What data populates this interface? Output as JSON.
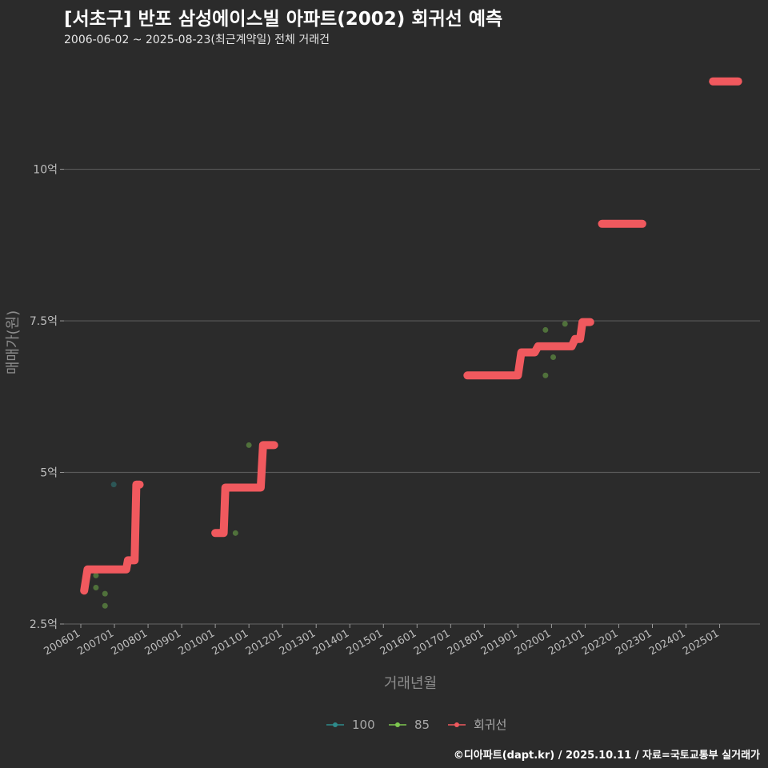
{
  "header": {
    "title": "[서초구] 반포 삼성에이스빌 아파트(2002) 회귀선 예측",
    "subtitle": "2006-06-02 ~ 2025-08-23(최근계약일) 전체 거래건"
  },
  "footer": {
    "credit": "©디아파트(dapt.kr) / 2025.10.11 / 자료=국토교통부 실거래가"
  },
  "colors": {
    "background": "#2b2b2b",
    "regression": "#f0595e",
    "series_100": "#2e8b8b",
    "series_85": "#7ec850",
    "grid": "#5a5a5a"
  },
  "chart_data": {
    "type": "scatter",
    "title": "[서초구] 반포 삼성에이스빌 아파트(2002) 회귀선 예측",
    "xlabel": "거래년월",
    "ylabel": "매매가(원)",
    "ylim": [
      2.5,
      12.0
    ],
    "xlim": [
      2005.5,
      2026.2
    ],
    "y_ticks": [
      {
        "value": 2.5,
        "label": "2.5억"
      },
      {
        "value": 5,
        "label": "5억"
      },
      {
        "value": 7.5,
        "label": "7.5억"
      },
      {
        "value": 10,
        "label": "10억"
      }
    ],
    "x_ticks": [
      {
        "value": 2006.0,
        "label": "200601"
      },
      {
        "value": 2007.0,
        "label": "200701"
      },
      {
        "value": 2008.0,
        "label": "200801"
      },
      {
        "value": 2009.0,
        "label": "200901"
      },
      {
        "value": 2010.0,
        "label": "201001"
      },
      {
        "value": 2011.0,
        "label": "201101"
      },
      {
        "value": 2012.0,
        "label": "201201"
      },
      {
        "value": 2013.0,
        "label": "201301"
      },
      {
        "value": 2014.0,
        "label": "201401"
      },
      {
        "value": 2015.0,
        "label": "201501"
      },
      {
        "value": 2016.0,
        "label": "201601"
      },
      {
        "value": 2017.0,
        "label": "201701"
      },
      {
        "value": 2018.0,
        "label": "201801"
      },
      {
        "value": 2019.0,
        "label": "201901"
      },
      {
        "value": 2020.0,
        "label": "202001"
      },
      {
        "value": 2021.0,
        "label": "202101"
      },
      {
        "value": 2022.0,
        "label": "202201"
      },
      {
        "value": 2023.0,
        "label": "202301"
      },
      {
        "value": 2024.0,
        "label": "202401"
      },
      {
        "value": 2025.0,
        "label": "202501"
      }
    ],
    "series": [
      {
        "name": "100",
        "color": "#2e8b8b",
        "points": [
          {
            "x": 2006.98,
            "y": 4.8
          }
        ]
      },
      {
        "name": "85",
        "color": "#7ec850",
        "points": [
          {
            "x": 2006.45,
            "y": 3.3
          },
          {
            "x": 2006.45,
            "y": 3.1
          },
          {
            "x": 2006.72,
            "y": 3.0
          },
          {
            "x": 2006.72,
            "y": 2.8
          },
          {
            "x": 2010.6,
            "y": 4.0
          },
          {
            "x": 2011.0,
            "y": 5.45
          },
          {
            "x": 2019.82,
            "y": 7.35
          },
          {
            "x": 2019.82,
            "y": 6.6
          },
          {
            "x": 2020.05,
            "y": 6.9
          },
          {
            "x": 2020.4,
            "y": 7.45
          }
        ]
      }
    ],
    "regression": {
      "name": "회귀선",
      "color": "#f0595e",
      "segments": [
        [
          [
            2006.1,
            3.05
          ],
          [
            2006.2,
            3.4
          ],
          [
            2007.35,
            3.4
          ],
          [
            2007.4,
            3.55
          ],
          [
            2007.6,
            3.55
          ],
          [
            2007.65,
            4.8
          ],
          [
            2007.75,
            4.8
          ]
        ],
        [
          [
            2010.0,
            4.0
          ],
          [
            2010.25,
            4.0
          ],
          [
            2010.3,
            4.75
          ],
          [
            2011.35,
            4.75
          ],
          [
            2011.42,
            5.45
          ],
          [
            2011.75,
            5.45
          ]
        ],
        [
          [
            2017.5,
            6.6
          ],
          [
            2019.0,
            6.6
          ],
          [
            2019.1,
            6.98
          ],
          [
            2019.5,
            6.98
          ],
          [
            2019.6,
            7.08
          ],
          [
            2020.6,
            7.08
          ],
          [
            2020.7,
            7.2
          ],
          [
            2020.85,
            7.2
          ],
          [
            2020.92,
            7.48
          ],
          [
            2021.15,
            7.48
          ]
        ],
        [
          [
            2021.5,
            9.1
          ],
          [
            2022.7,
            9.1
          ]
        ],
        [
          [
            2024.8,
            11.45
          ],
          [
            2025.55,
            11.45
          ]
        ]
      ]
    },
    "legend": {
      "position": "bottom",
      "items": [
        {
          "label": "100",
          "color": "#2e8b8b"
        },
        {
          "label": "85",
          "color": "#7ec850"
        },
        {
          "label": "회귀선",
          "color": "#f0595e"
        }
      ]
    }
  }
}
